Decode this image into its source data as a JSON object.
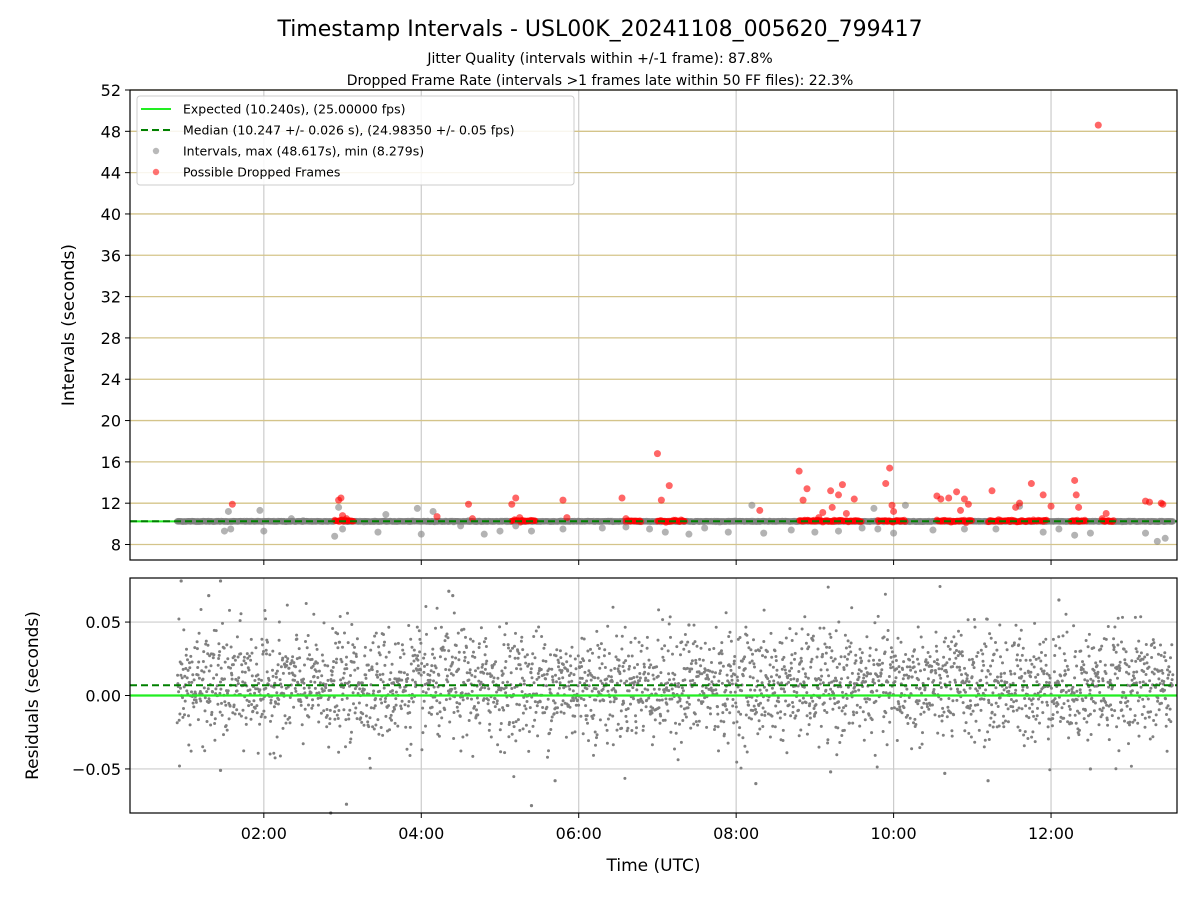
{
  "chart_data": [
    {
      "type": "scatter",
      "panel": "top",
      "title": "Timestamp Intervals - USL00K_20241108_005620_799417",
      "subtitle_lines": [
        "Jitter Quality (intervals within +/-1 frame): 87.8%",
        "Dropped Frame Rate (intervals >1 frames late within 50 FF files): 22.3%"
      ],
      "ylabel": "Intervals (seconds)",
      "xlim_hours": [
        0.3,
        13.6
      ],
      "ylim": [
        6.5,
        52
      ],
      "yticks": [
        8,
        12,
        16,
        20,
        24,
        28,
        32,
        36,
        40,
        44,
        48,
        52
      ],
      "grid": true,
      "legend_position": "upper-left",
      "legend": [
        {
          "label": "Expected (10.240s), (25.00000 fps)",
          "style": "solid-line",
          "color": "#22ee22"
        },
        {
          "label": "Median (10.247 +/- 0.026 s), (24.98350 +/- 0.05 fps)",
          "style": "dashed-line",
          "color": "#008000"
        },
        {
          "label": "Intervals, max (48.617s), min (8.279s)",
          "style": "marker",
          "color": "#808080"
        },
        {
          "label": "Possible Dropped Frames",
          "style": "marker",
          "color": "#ff0000"
        }
      ],
      "expected_interval": 10.24,
      "median_interval": 10.247,
      "series": [
        {
          "name": "Intervals, max (48.617s), min (8.279s)",
          "color": "#808080",
          "x_hours": [
            1.5,
            1.55,
            1.58,
            1.95,
            2.0,
            2.35,
            2.5,
            2.9,
            2.95,
            3.0,
            3.45,
            3.55,
            3.95,
            4.0,
            4.15,
            4.5,
            4.6,
            4.8,
            5.0,
            5.2,
            5.4,
            5.8,
            6.3,
            6.6,
            6.9,
            7.1,
            7.4,
            7.6,
            7.9,
            8.2,
            8.35,
            8.7,
            9.0,
            9.3,
            9.6,
            9.75,
            9.8,
            10.0,
            10.15,
            10.5,
            10.9,
            11.3,
            11.6,
            11.9,
            12.1,
            12.3,
            12.5,
            12.9,
            13.2,
            13.35,
            13.45
          ],
          "y": [
            9.3,
            11.2,
            9.5,
            11.3,
            9.3,
            10.5,
            10.3,
            8.8,
            11.6,
            9.5,
            9.2,
            10.9,
            11.5,
            9.0,
            11.2,
            9.8,
            10.3,
            9.0,
            9.3,
            9.8,
            9.3,
            9.5,
            9.6,
            9.7,
            9.5,
            9.2,
            9.0,
            9.6,
            9.2,
            11.8,
            9.1,
            9.4,
            9.2,
            9.3,
            9.6,
            11.5,
            9.5,
            9.1,
            11.8,
            9.4,
            9.5,
            9.5,
            11.7,
            9.2,
            9.5,
            8.9,
            9.1,
            10.2,
            9.1,
            8.3,
            8.6
          ]
        },
        {
          "name": "Possible Dropped Frames",
          "color": "#ff0000",
          "x_hours": [
            1.6,
            2.95,
            2.98,
            3.0,
            3.05,
            4.2,
            4.6,
            4.65,
            5.15,
            5.2,
            5.25,
            5.8,
            5.85,
            6.55,
            6.6,
            7.0,
            7.05,
            7.15,
            8.3,
            8.8,
            8.85,
            8.9,
            9.05,
            9.1,
            9.2,
            9.22,
            9.3,
            9.35,
            9.4,
            9.5,
            9.9,
            9.95,
            9.98,
            10.0,
            10.55,
            10.6,
            10.7,
            10.8,
            10.85,
            10.9,
            10.95,
            11.25,
            11.55,
            11.6,
            11.75,
            11.9,
            12.0,
            12.3,
            12.32,
            12.35,
            12.6,
            12.65,
            12.7,
            13.2,
            13.25,
            13.4,
            13.42
          ],
          "y": [
            11.9,
            12.3,
            12.5,
            10.8,
            10.5,
            10.7,
            11.9,
            10.5,
            11.9,
            12.5,
            10.6,
            12.3,
            10.6,
            12.5,
            10.5,
            16.8,
            12.3,
            13.7,
            11.3,
            15.1,
            12.3,
            13.4,
            10.6,
            11.1,
            13.2,
            11.6,
            12.8,
            13.8,
            11.0,
            12.4,
            13.9,
            15.4,
            11.8,
            11.2,
            12.7,
            12.4,
            12.5,
            13.1,
            11.3,
            12.4,
            11.9,
            13.2,
            11.6,
            12.0,
            13.9,
            12.8,
            11.7,
            14.2,
            12.8,
            11.6,
            48.6,
            10.5,
            11.0,
            12.2,
            12.1,
            12.0,
            11.9
          ]
        }
      ],
      "dense_bands_hours": [
        [
          0.9,
          2.9
        ],
        [
          3.0,
          13.55
        ]
      ],
      "dense_band_value": 10.24,
      "dropped_dense_ranges_hours": [
        [
          2.9,
          3.15
        ],
        [
          5.15,
          5.45
        ],
        [
          6.6,
          6.8
        ],
        [
          7.0,
          7.35
        ],
        [
          8.8,
          9.6
        ],
        [
          9.8,
          10.15
        ],
        [
          10.55,
          11.0
        ],
        [
          11.2,
          11.95
        ],
        [
          12.25,
          12.45
        ],
        [
          12.65,
          12.8
        ]
      ]
    },
    {
      "type": "scatter",
      "panel": "bottom",
      "xlabel": "Time (UTC)",
      "ylabel": "Residuals (seconds)",
      "xlim_hours": [
        0.3,
        13.6
      ],
      "ylim": [
        -0.08,
        0.08
      ],
      "yticks": [
        -0.05,
        0.0,
        0.05
      ],
      "ytick_labels": [
        "−0.05",
        "0.00",
        "0.05"
      ],
      "xticks_hours": [
        2,
        4,
        6,
        8,
        10,
        12
      ],
      "xtick_labels": [
        "02:00",
        "04:00",
        "06:00",
        "08:00",
        "10:00",
        "12:00"
      ],
      "grid": true,
      "expected_residual": 0.0,
      "median_residual": 0.007,
      "residual_x_range_hours": [
        0.9,
        13.55
      ],
      "residual_spread": 0.025,
      "series_color": "#808080",
      "outliers": [
        {
          "x_hours": 0.95,
          "y": 0.078
        },
        {
          "x_hours": 1.45,
          "y": 0.078
        },
        {
          "x_hours": 1.3,
          "y": 0.068
        },
        {
          "x_hours": 1.45,
          "y": -0.051
        },
        {
          "x_hours": 2.85,
          "y": -0.08
        },
        {
          "x_hours": 3.05,
          "y": -0.074
        },
        {
          "x_hours": 4.35,
          "y": 0.071
        },
        {
          "x_hours": 4.4,
          "y": 0.068
        },
        {
          "x_hours": 5.4,
          "y": -0.075
        },
        {
          "x_hours": 5.7,
          "y": -0.058
        },
        {
          "x_hours": 8.25,
          "y": -0.06
        },
        {
          "x_hours": 9.2,
          "y": -0.052
        },
        {
          "x_hours": 11.2,
          "y": -0.058
        },
        {
          "x_hours": 12.1,
          "y": 0.065
        },
        {
          "x_hours": 12.5,
          "y": -0.05
        },
        {
          "x_hours": 10.65,
          "y": -0.053
        },
        {
          "x_hours": 7.4,
          "y": 0.048
        }
      ]
    }
  ],
  "colors": {
    "expected": "#22ee22",
    "median": "#008000",
    "intervals": "#808080",
    "dropped": "#ff0000",
    "hgrid_top": "#d4c48a",
    "vgrid": "#cccccc"
  }
}
